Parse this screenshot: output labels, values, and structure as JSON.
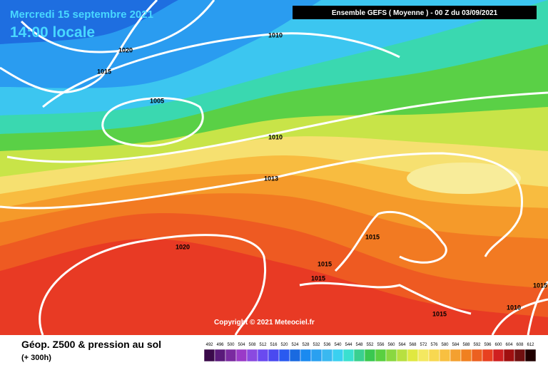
{
  "header": {
    "date": "Mercredi 15 septembre 2021",
    "time": "14:00 locale",
    "run": "Ensemble GEFS  ( Moyenne )  - 00 Z du 03/09/2021"
  },
  "map": {
    "isobar_labels": [
      "1010",
      "1020",
      "1015",
      "1005",
      "1010",
      "1013",
      "1015",
      "1020",
      "1015",
      "1015",
      "1015",
      "1010",
      "1015"
    ],
    "copyright": "Copyright © 2021 Meteociel.fr"
  },
  "legend": {
    "title": "Géop. Z500 & pression au sol",
    "lead": "(+ 300h)",
    "ticks": [
      492,
      496,
      500,
      504,
      508,
      512,
      516,
      520,
      524,
      528,
      532,
      536,
      540,
      544,
      548,
      552,
      556,
      560,
      564,
      568,
      572,
      576,
      580,
      584,
      588,
      592,
      596,
      600,
      604,
      608,
      612
    ],
    "colors": [
      "#3a0a4a",
      "#5a1a7a",
      "#7a2aa0",
      "#9a3ac8",
      "#8a4ae0",
      "#6a4af0",
      "#4a4af0",
      "#2a5af0",
      "#1a6ae0",
      "#1a8af0",
      "#2aa0f0",
      "#3ab8f0",
      "#3ad0f0",
      "#3ae0d0",
      "#3ad090",
      "#3ac850",
      "#5ad040",
      "#8ad840",
      "#b8e040",
      "#e0e840",
      "#f4e860",
      "#f8d850",
      "#f8c040",
      "#f4a030",
      "#f08020",
      "#ec6020",
      "#e84020",
      "#d02020",
      "#a01010",
      "#701010",
      "#200000"
    ]
  }
}
